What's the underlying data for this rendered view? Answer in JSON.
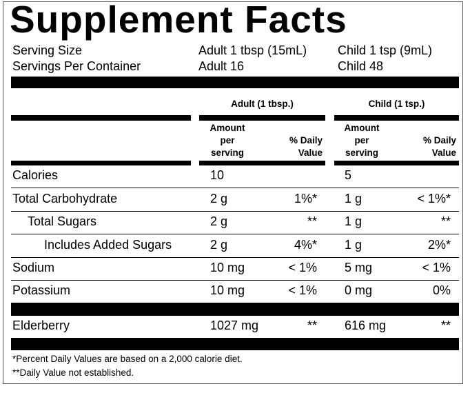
{
  "title": "Supplement Facts",
  "serving": {
    "size_label": "Serving Size",
    "size_adult": "Adult 1 tbsp (15mL)",
    "size_child": "Child 1 tsp (9mL)",
    "per_container_label": "Servings Per Container",
    "per_container_adult": "Adult 16",
    "per_container_child": "Child 48"
  },
  "columns": {
    "adult": "Adult (1 tbsp.)",
    "child": "Child (1 tsp.)",
    "amount_lines": [
      "Amount",
      "per",
      "serving"
    ],
    "dv_lines": [
      "% Daily",
      "Value"
    ]
  },
  "rows": [
    {
      "name": "Calories",
      "adult_amount": "10",
      "adult_dv": "",
      "child_amount": "5",
      "child_dv": ""
    },
    {
      "name": "Total Carbohydrate",
      "adult_amount": "2 g",
      "adult_dv": "1%*",
      "child_amount": "1 g",
      "child_dv": "< 1%*"
    },
    {
      "name": "Total Sugars",
      "adult_amount": "2 g",
      "adult_dv": "**",
      "child_amount": "1 g",
      "child_dv": "**"
    },
    {
      "name": "Includes Added Sugars",
      "adult_amount": "2 g",
      "adult_dv": "4%*",
      "child_amount": "1 g",
      "child_dv": "2%*"
    },
    {
      "name": "Sodium",
      "adult_amount": "10 mg",
      "adult_dv": "< 1%",
      "child_amount": "5 mg",
      "child_dv": "< 1%"
    },
    {
      "name": "Potassium",
      "adult_amount": "10 mg",
      "adult_dv": "< 1%",
      "child_amount": "0 mg",
      "child_dv": "0%"
    }
  ],
  "other": {
    "name": "Elderberry",
    "adult_amount": "1027 mg",
    "adult_dv": "**",
    "child_amount": "616 mg",
    "child_dv": "**"
  },
  "footnotes": [
    "*Percent Daily Values are based on a 2,000 calorie diet.",
    "**Daily Value not established."
  ]
}
